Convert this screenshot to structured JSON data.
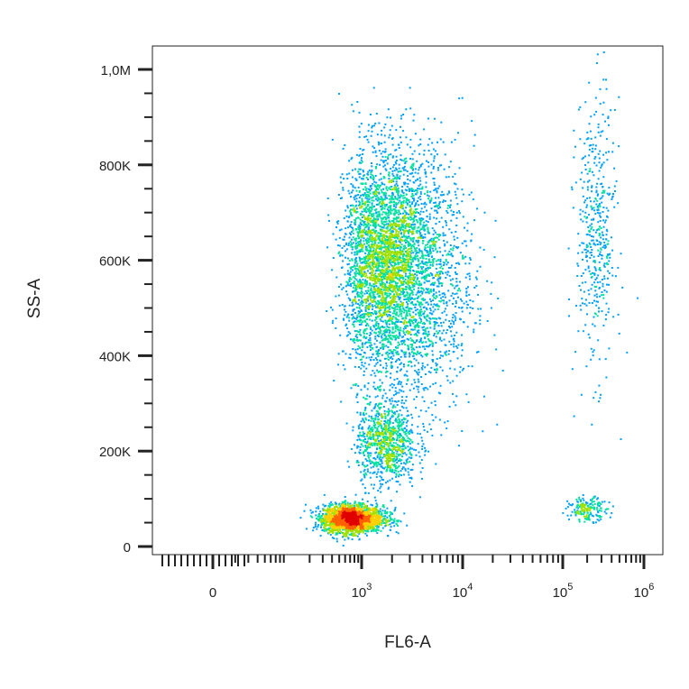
{
  "chart_data": {
    "type": "scatter",
    "subtype": "flow-cytometry density dot plot",
    "xlabel": "FL6-A",
    "ylabel": "SS-A",
    "x_scale": "biexponential (linear near 0, log above)",
    "x_ticks": [
      {
        "value": 0,
        "base": "0",
        "exp": ""
      },
      {
        "value": 1000,
        "base": "10",
        "exp": "3"
      },
      {
        "value": 10000,
        "base": "10",
        "exp": "4"
      },
      {
        "value": 100000,
        "base": "10",
        "exp": "5"
      },
      {
        "value": 1000000,
        "base": "10",
        "exp": "6"
      }
    ],
    "y_ticks": [
      {
        "value": 0,
        "label": "0"
      },
      {
        "value": 200000,
        "label": "200K"
      },
      {
        "value": 400000,
        "label": "400K"
      },
      {
        "value": 600000,
        "label": "600K"
      },
      {
        "value": 800000,
        "label": "800K"
      },
      {
        "value": 1000000,
        "label": "1,0M"
      }
    ],
    "ylim": [
      -15000,
      1050000
    ],
    "colormap": [
      "#0000ff",
      "#00a0ff",
      "#00e0a0",
      "#a0e000",
      "#ffd000",
      "#ff6000",
      "#e00000"
    ],
    "populations": [
      {
        "center_x": 700,
        "center_y": 60000,
        "spread_decades": 0.18,
        "spread_y": 14000,
        "weight": 0.3,
        "density": "high"
      },
      {
        "center_x": 1600,
        "center_y": 600000,
        "spread_decades": 0.22,
        "spread_y": 110000,
        "weight": 0.34,
        "density": "medium"
      },
      {
        "center_x": 3500,
        "center_y": 560000,
        "spread_decades": 0.28,
        "spread_y": 140000,
        "weight": 0.18,
        "density": "low"
      },
      {
        "center_x": 1700,
        "center_y": 220000,
        "spread_decades": 0.15,
        "spread_y": 45000,
        "weight": 0.1,
        "density": "medium"
      },
      {
        "center_x": 250000,
        "center_y": 650000,
        "spread_decades": 0.12,
        "spread_y": 140000,
        "weight": 0.05,
        "density": "low"
      },
      {
        "center_x": 200000,
        "center_y": 80000,
        "spread_decades": 0.12,
        "spread_y": 12000,
        "weight": 0.02,
        "density": "low"
      }
    ]
  }
}
